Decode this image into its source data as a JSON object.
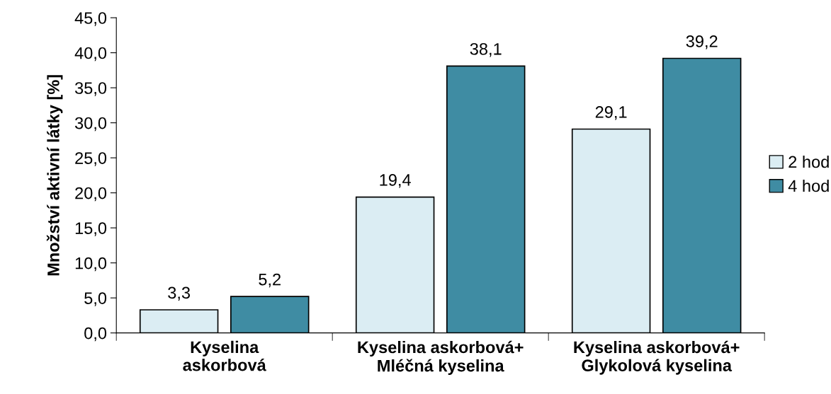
{
  "chart_data": {
    "type": "bar",
    "ylabel": "Množství aktivní látky [%]",
    "categories": [
      "Kyselina\naskorbová",
      "Kyselina askorbová+\nMléčná kyselina",
      "Kyselina askorbová+\nGlykolová kyselina"
    ],
    "series": [
      {
        "name": "2 hod",
        "color": "#dbedf3",
        "values": [
          3.3,
          19.4,
          29.1
        ],
        "value_labels": [
          "3,3",
          "19,4",
          "29,1"
        ]
      },
      {
        "name": "4 hod",
        "color": "#3f8ca3",
        "values": [
          5.2,
          38.1,
          39.2
        ],
        "value_labels": [
          "5,2",
          "38,1",
          "39,2"
        ]
      }
    ],
    "ylim": [
      0,
      45
    ],
    "yticks": [
      {
        "value": 0,
        "label": "0,0"
      },
      {
        "value": 5,
        "label": "5,0"
      },
      {
        "value": 10,
        "label": "10,0"
      },
      {
        "value": 15,
        "label": "15,0"
      },
      {
        "value": 20,
        "label": "20,0"
      },
      {
        "value": 25,
        "label": "25,0"
      },
      {
        "value": 30,
        "label": "30,0"
      },
      {
        "value": 35,
        "label": "35,0"
      },
      {
        "value": 40,
        "label": "40,0"
      },
      {
        "value": 45,
        "label": "45,0"
      }
    ],
    "grid": false,
    "legend": "right"
  }
}
